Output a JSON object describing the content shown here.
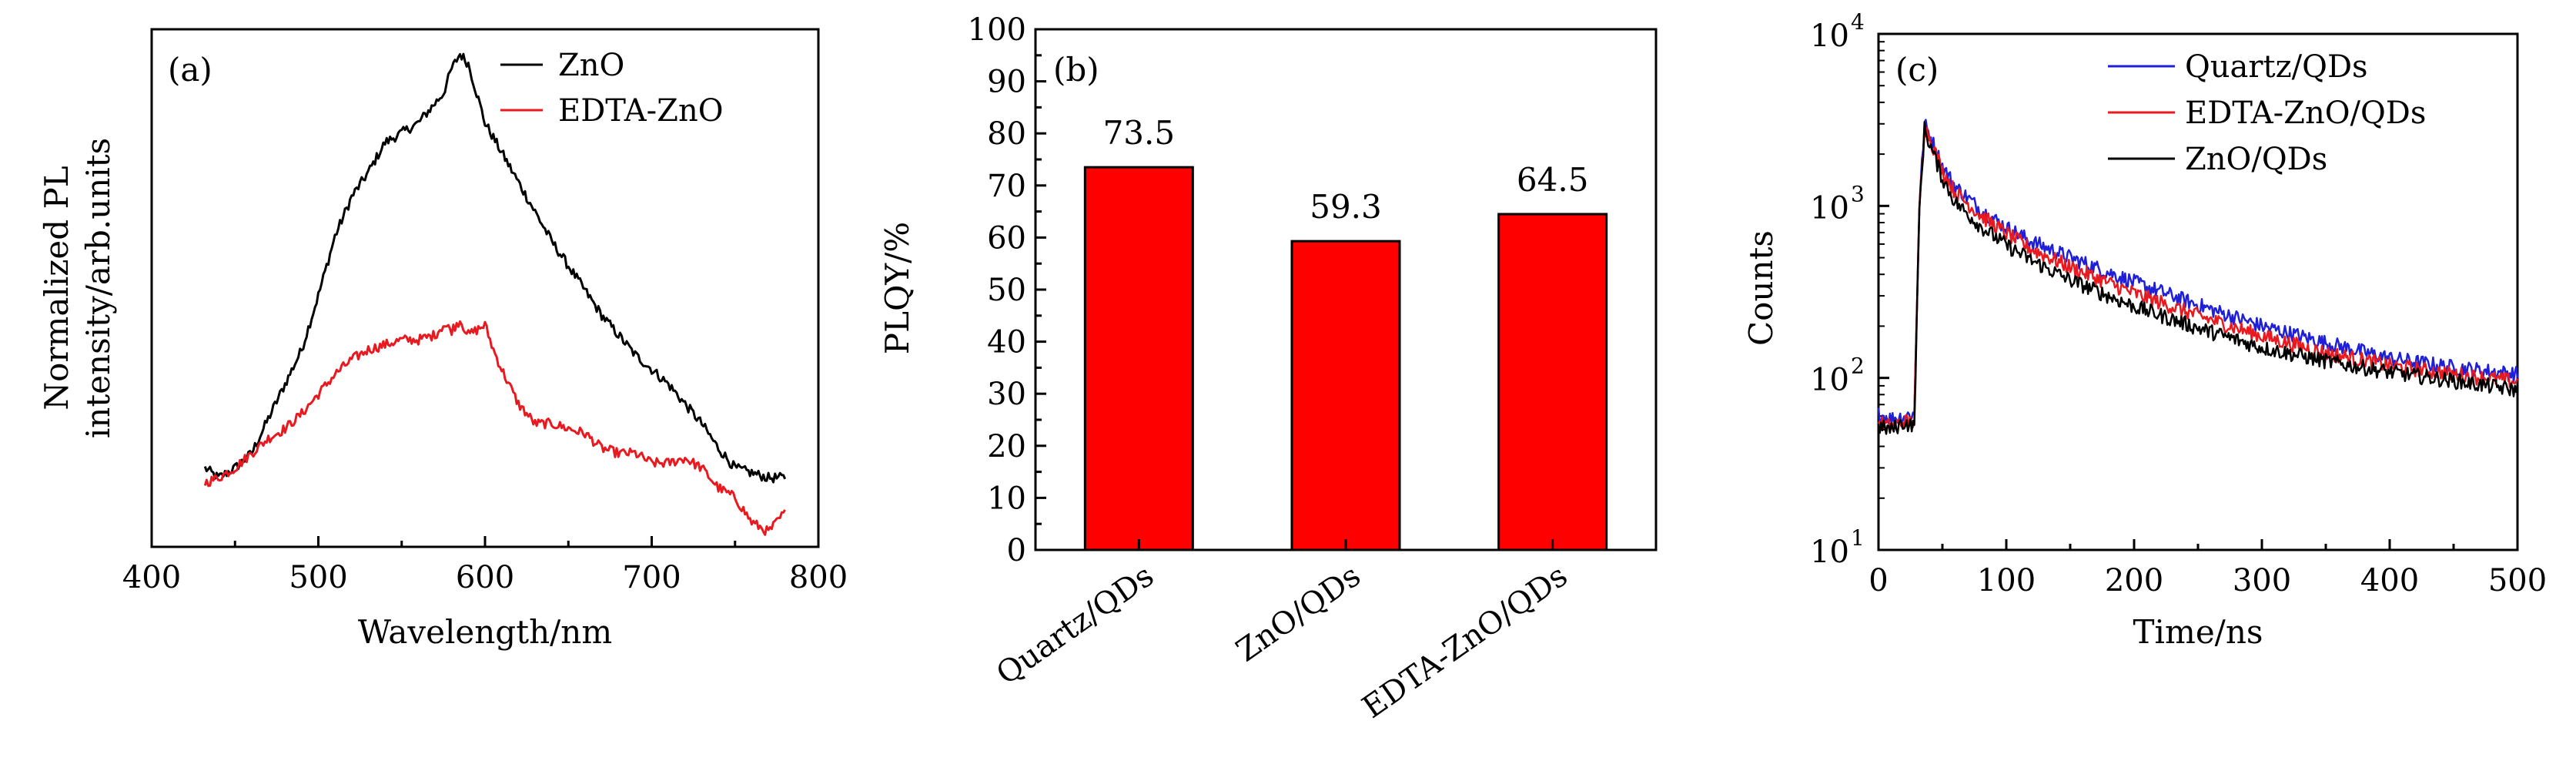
{
  "chart_data": [
    {
      "panel_label": "(a)",
      "type": "line",
      "xlabel": "Wavelength/nm",
      "ylabel_line1": "Normalized PL",
      "ylabel_line2": "intensity/arb.units",
      "xlim": [
        400,
        800
      ],
      "ylim": [
        0,
        1.05
      ],
      "xticks": [
        "400",
        "500",
        "600",
        "700",
        "800"
      ],
      "y_ticks_shown": false,
      "grid": false,
      "legend_position": "top-right",
      "series": [
        {
          "name": "ZnO",
          "color": "#000000",
          "x": [
            432,
            440,
            450,
            460,
            470,
            480,
            490,
            500,
            510,
            520,
            530,
            540,
            550,
            560,
            570,
            575,
            580,
            585,
            590,
            595,
            600,
            610,
            620,
            630,
            640,
            650,
            660,
            670,
            680,
            690,
            700,
            710,
            720,
            730,
            740,
            750,
            760,
            770,
            780
          ],
          "y": [
            0.16,
            0.14,
            0.16,
            0.19,
            0.26,
            0.33,
            0.4,
            0.51,
            0.63,
            0.71,
            0.76,
            0.82,
            0.84,
            0.86,
            0.9,
            0.92,
            0.97,
            1.0,
            0.98,
            0.92,
            0.86,
            0.8,
            0.74,
            0.68,
            0.62,
            0.57,
            0.52,
            0.47,
            0.43,
            0.39,
            0.36,
            0.33,
            0.29,
            0.25,
            0.2,
            0.16,
            0.15,
            0.14,
            0.14
          ]
        },
        {
          "name": "EDTA-ZnO",
          "color": "#e8191f",
          "x": [
            432,
            440,
            450,
            460,
            470,
            480,
            490,
            500,
            510,
            520,
            530,
            540,
            550,
            560,
            570,
            575,
            580,
            585,
            590,
            595,
            600,
            605,
            610,
            620,
            630,
            640,
            650,
            660,
            670,
            680,
            690,
            700,
            710,
            720,
            730,
            740,
            750,
            760,
            770,
            780
          ],
          "y": [
            0.13,
            0.14,
            0.16,
            0.19,
            0.22,
            0.24,
            0.27,
            0.31,
            0.35,
            0.38,
            0.4,
            0.41,
            0.42,
            0.42,
            0.43,
            0.45,
            0.44,
            0.46,
            0.43,
            0.44,
            0.45,
            0.4,
            0.36,
            0.29,
            0.25,
            0.25,
            0.24,
            0.23,
            0.2,
            0.19,
            0.19,
            0.17,
            0.17,
            0.18,
            0.16,
            0.12,
            0.1,
            0.05,
            0.03,
            0.07
          ]
        }
      ]
    },
    {
      "panel_label": "(b)",
      "type": "bar",
      "ylabel": "PLQY/%",
      "ylim": [
        0,
        100
      ],
      "yticks": [
        0,
        10,
        20,
        30,
        40,
        50,
        60,
        70,
        80,
        90,
        100
      ],
      "categories": [
        "Quartz/QDs",
        "ZnO/QDs",
        "EDTA-ZnO/QDs"
      ],
      "values": [
        73.5,
        59.3,
        64.5
      ],
      "data_labels": [
        "73.5",
        "59.3",
        "64.5"
      ],
      "bar_color": "#ff0000",
      "grid": false
    },
    {
      "panel_label": "(c)",
      "type": "line",
      "xlabel": "Time/ns",
      "ylabel": "Counts",
      "y_scale": "log",
      "xlim": [
        0,
        500
      ],
      "ylim": [
        10,
        10000
      ],
      "xticks": [
        "0",
        "100",
        "200",
        "300",
        "400",
        "500"
      ],
      "yticks": [
        10,
        100,
        1000,
        10000
      ],
      "ytick_labels": [
        [
          "10",
          "1"
        ],
        [
          "10",
          "2"
        ],
        [
          "10",
          "3"
        ],
        [
          "10",
          "4"
        ]
      ],
      "grid": false,
      "legend_position": "top-right",
      "series": [
        {
          "name": "Quartz/QDs",
          "color": "#1f1fd8",
          "x": [
            0,
            10,
            20,
            28,
            32,
            36,
            40,
            50,
            60,
            80,
            100,
            120,
            150,
            200,
            250,
            300,
            350,
            400,
            450,
            500
          ],
          "y": [
            62,
            58,
            60,
            62,
            1000,
            3000,
            2600,
            1700,
            1300,
            950,
            750,
            620,
            500,
            360,
            265,
            200,
            160,
            130,
            115,
            105
          ]
        },
        {
          "name": "EDTA-ZnO/QDs",
          "color": "#e8191f",
          "x": [
            0,
            10,
            20,
            28,
            32,
            36,
            40,
            50,
            60,
            80,
            100,
            120,
            150,
            200,
            250,
            300,
            350,
            400,
            450,
            500
          ],
          "y": [
            55,
            52,
            56,
            55,
            1000,
            2900,
            2500,
            1600,
            1200,
            880,
            690,
            560,
            440,
            310,
            230,
            175,
            140,
            118,
            105,
            95
          ]
        },
        {
          "name": "ZnO/QDs",
          "color": "#000000",
          "x": [
            0,
            10,
            20,
            28,
            32,
            36,
            40,
            50,
            60,
            80,
            100,
            120,
            150,
            200,
            250,
            300,
            350,
            400,
            450,
            500
          ],
          "y": [
            52,
            50,
            55,
            52,
            950,
            2800,
            2300,
            1450,
            1050,
            760,
            590,
            480,
            370,
            260,
            195,
            150,
            125,
            108,
            96,
            85
          ]
        }
      ]
    }
  ]
}
